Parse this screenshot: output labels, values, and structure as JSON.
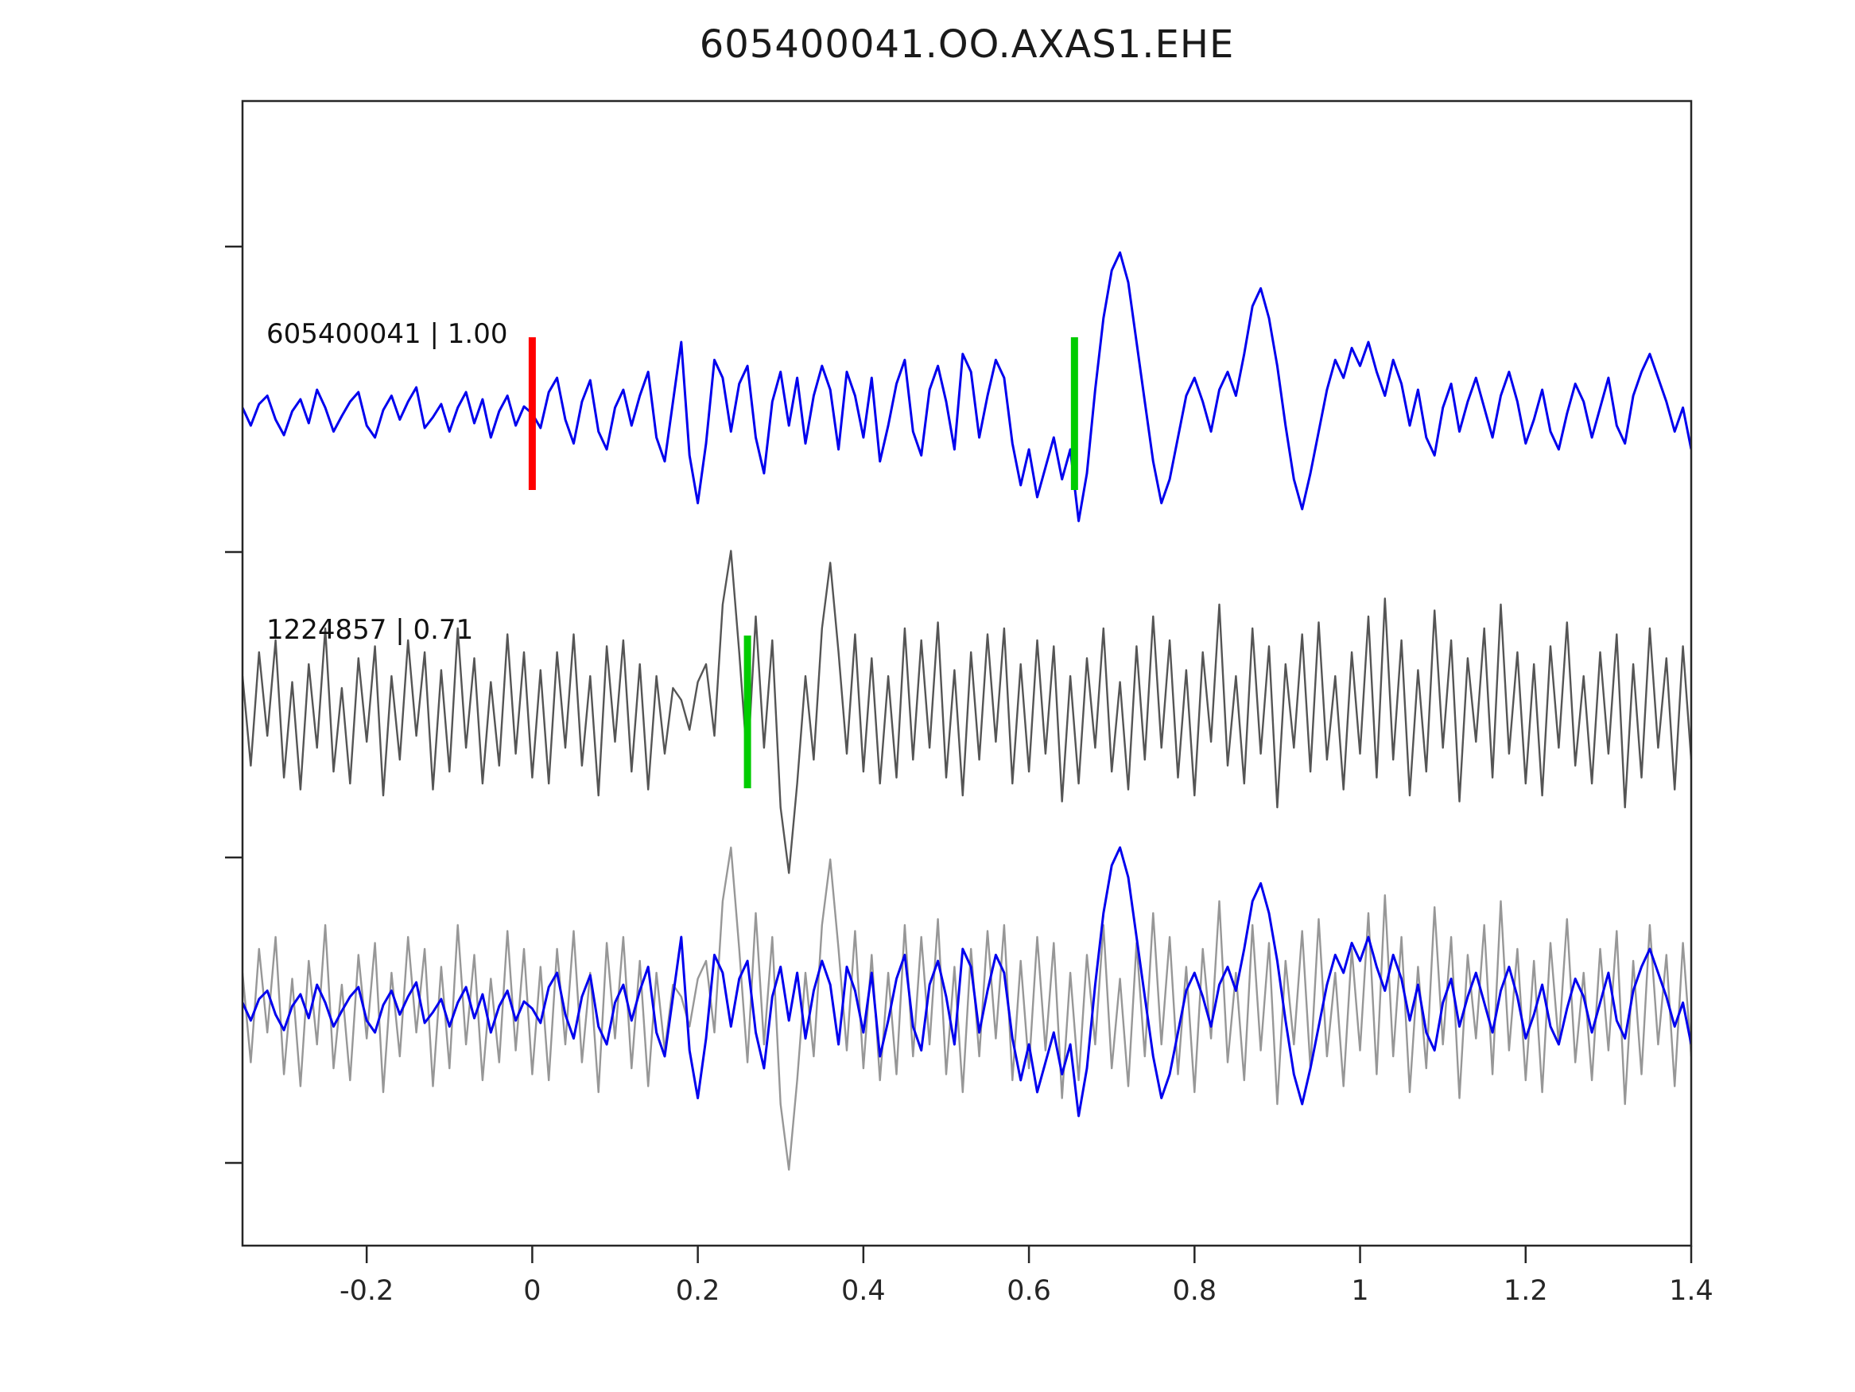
{
  "title": "605400041.OO.AXAS1.EHE",
  "chart_data": {
    "type": "line",
    "title": "605400041.OO.AXAS1.EHE",
    "xlabel": "",
    "ylabel": "",
    "grid": false,
    "legend": "none",
    "xlim": [
      -0.35,
      1.4
    ],
    "x_start": -0.35,
    "x_step": 0.01,
    "x_ticks": [
      -0.2,
      0,
      0.2,
      0.4,
      0.6,
      0.8,
      1,
      1.2,
      1.4
    ],
    "x_tick_labels": [
      "-0.2",
      "0",
      "0.2",
      "0.4",
      "0.6",
      "0.8",
      "1",
      "1.2",
      "1.4"
    ],
    "rows": [
      {
        "label": "605400041 | 1.00",
        "series": [
          "template"
        ],
        "colors": [
          "#0000ee"
        ],
        "markers": [
          {
            "x": 0.0,
            "color": "#ff0000",
            "name": "origin-pick-marker"
          },
          {
            "x": 0.655,
            "color": "#00cc00",
            "name": "phase-pick-marker"
          }
        ]
      },
      {
        "label": "1224857 | 0.71",
        "series": [
          "detection"
        ],
        "colors": [
          "#555555"
        ],
        "markers": [
          {
            "x": 0.26,
            "color": "#00cc00",
            "name": "phase-pick-marker"
          }
        ]
      },
      {
        "label": "",
        "series": [
          "detection",
          "template"
        ],
        "colors": [
          "#979797",
          "#0000ee"
        ],
        "markers": []
      }
    ],
    "series": {
      "template": [
        0.05,
        -0.1,
        0.08,
        0.15,
        -0.05,
        -0.18,
        0.02,
        0.12,
        -0.08,
        0.2,
        0.05,
        -0.15,
        -0.02,
        0.1,
        0.18,
        -0.1,
        -0.2,
        0.03,
        0.15,
        -0.05,
        0.1,
        0.22,
        -0.12,
        -0.03,
        0.08,
        -0.15,
        0.05,
        0.18,
        -0.08,
        0.12,
        -0.2,
        0.02,
        0.15,
        -0.1,
        0.06,
        0.0,
        -0.12,
        0.18,
        0.3,
        -0.05,
        -0.25,
        0.1,
        0.28,
        -0.15,
        -0.3,
        0.05,
        0.2,
        -0.1,
        0.15,
        0.35,
        -0.2,
        -0.4,
        0.1,
        0.6,
        -0.35,
        -0.75,
        -0.25,
        0.45,
        0.3,
        -0.15,
        0.25,
        0.4,
        -0.2,
        -0.5,
        0.1,
        0.35,
        -0.1,
        0.3,
        -0.25,
        0.15,
        0.4,
        0.2,
        -0.3,
        0.35,
        0.15,
        -0.2,
        0.3,
        -0.4,
        -0.1,
        0.25,
        0.45,
        -0.15,
        -0.35,
        0.2,
        0.4,
        0.1,
        -0.3,
        0.5,
        0.35,
        -0.2,
        0.15,
        0.45,
        0.3,
        -0.25,
        -0.6,
        -0.3,
        -0.7,
        -0.45,
        -0.2,
        -0.55,
        -0.3,
        -0.9,
        -0.5,
        0.2,
        0.8,
        1.2,
        1.35,
        1.1,
        0.6,
        0.1,
        -0.4,
        -0.75,
        -0.55,
        -0.2,
        0.15,
        0.3,
        0.1,
        -0.15,
        0.2,
        0.35,
        0.15,
        0.5,
        0.9,
        1.05,
        0.8,
        0.4,
        -0.1,
        -0.55,
        -0.8,
        -0.5,
        -0.15,
        0.2,
        0.45,
        0.3,
        0.55,
        0.4,
        0.6,
        0.35,
        0.15,
        0.45,
        0.25,
        -0.1,
        0.2,
        -0.2,
        -0.35,
        0.05,
        0.25,
        -0.15,
        0.1,
        0.3,
        0.05,
        -0.2,
        0.15,
        0.35,
        0.1,
        -0.25,
        -0.05,
        0.2,
        -0.15,
        -0.3,
        0.0,
        0.25,
        0.1,
        -0.2,
        0.05,
        0.3,
        -0.1,
        -0.25,
        0.15,
        0.35,
        0.5,
        0.3,
        0.1,
        -0.15,
        0.05,
        -0.3
      ],
      "detection": [
        0.3,
        -0.45,
        0.5,
        -0.2,
        0.6,
        -0.55,
        0.25,
        -0.65,
        0.4,
        -0.3,
        0.7,
        -0.5,
        0.2,
        -0.6,
        0.45,
        -0.25,
        0.55,
        -0.7,
        0.3,
        -0.4,
        0.6,
        -0.2,
        0.5,
        -0.65,
        0.35,
        -0.5,
        0.7,
        -0.3,
        0.45,
        -0.6,
        0.25,
        -0.45,
        0.65,
        -0.35,
        0.5,
        -0.55,
        0.35,
        -0.6,
        0.5,
        -0.3,
        0.65,
        -0.45,
        0.3,
        -0.7,
        0.55,
        -0.25,
        0.6,
        -0.5,
        0.4,
        -0.65,
        0.3,
        -0.35,
        0.2,
        0.1,
        -0.15,
        0.25,
        0.4,
        -0.2,
        0.9,
        1.35,
        0.5,
        -0.45,
        0.8,
        -0.3,
        0.6,
        -0.8,
        -1.35,
        -0.6,
        0.3,
        -0.4,
        0.7,
        1.25,
        0.5,
        -0.35,
        0.65,
        -0.5,
        0.45,
        -0.6,
        0.3,
        -0.55,
        0.7,
        -0.4,
        0.6,
        -0.3,
        0.75,
        -0.55,
        0.35,
        -0.7,
        0.5,
        -0.4,
        0.65,
        -0.25,
        0.7,
        -0.6,
        0.4,
        -0.5,
        0.6,
        -0.35,
        0.55,
        -0.75,
        0.3,
        -0.6,
        0.45,
        -0.3,
        0.7,
        -0.5,
        0.25,
        -0.65,
        0.55,
        -0.4,
        0.8,
        -0.3,
        0.6,
        -0.55,
        0.35,
        -0.7,
        0.5,
        -0.25,
        0.9,
        -0.45,
        0.3,
        -0.6,
        0.7,
        -0.35,
        0.55,
        -0.8,
        0.4,
        -0.3,
        0.65,
        -0.5,
        0.75,
        -0.4,
        0.3,
        -0.65,
        0.5,
        -0.35,
        0.8,
        -0.55,
        0.95,
        -0.4,
        0.6,
        -0.7,
        0.35,
        -0.5,
        0.85,
        -0.3,
        0.6,
        -0.75,
        0.45,
        -0.25,
        0.7,
        -0.55,
        0.9,
        -0.35,
        0.5,
        -0.6,
        0.4,
        -0.7,
        0.55,
        -0.3,
        0.75,
        -0.45,
        0.3,
        -0.6,
        0.5,
        -0.35,
        0.65,
        -0.8,
        0.4,
        -0.55,
        0.7,
        -0.3,
        0.45,
        -0.65,
        0.55,
        -0.4
      ]
    },
    "layout_hints": {
      "rows_order": [
        "template-trace",
        "detection-trace",
        "overlay-of-both"
      ],
      "marker_note": "vertical pick markers drawn over the traces",
      "axis_box": true,
      "tick_sides": [
        "bottom",
        "left"
      ]
    }
  },
  "colors": {
    "template_blue": "#0000ee",
    "detection_gray": "#555555",
    "overlay_gray": "#979797",
    "pick_red": "#ff0000",
    "pick_green": "#00cc00",
    "axis": "#262626"
  }
}
